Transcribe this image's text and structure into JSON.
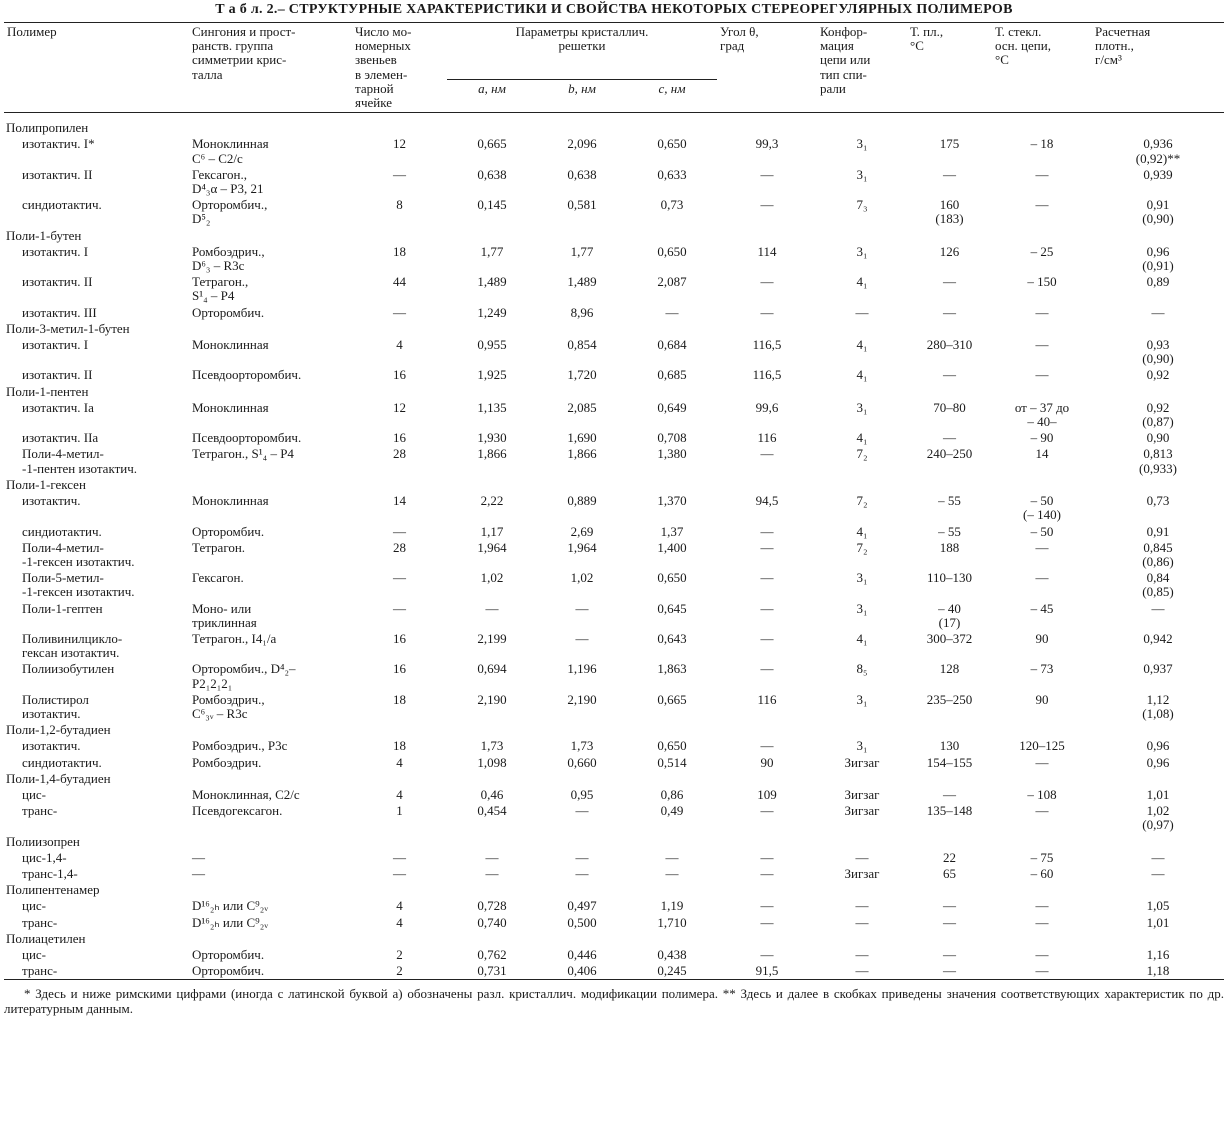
{
  "title": "Т а б л. 2.– СТРУКТУРНЫЕ ХАРАКТЕРИСТИКИ И СВОЙСТВА НЕКОТОРЫХ СТЕРЕОРЕГУЛЯРНЫХ ПОЛИМЕРОВ",
  "header": {
    "columns": [
      "Полимер",
      "Сингония и прост-\nранств. группа\nсимметрии крис-\nталла",
      "Число мо-\nномерных\nзвеньев\nв элемен-\nтарной\nячейке",
      "Угол θ,\nград",
      "Конфор-\nмация\nцепи или\nтип спи-\nрали",
      "Т. пл.,\n°С",
      "Т. стекл.\nосн. цепи,\n°С",
      "Расчетная\nплотн.,\nг/см³"
    ],
    "group": "Параметры кристаллич.\nрешетки",
    "subcolumns": [
      "a, нм",
      "b, нм",
      "c, нм"
    ]
  },
  "table": {
    "rows": [
      [
        "Полипропилен"
      ],
      [
        "изотактич. I*",
        "Моноклинная\nC⁶ – C2/c",
        "12",
        "0,665",
        "2,096",
        "0,650",
        "99,3",
        "3₁",
        "175",
        "– 18",
        "0,936\n(0,92)**"
      ],
      [
        "изотактич. II",
        "Гексагон.,\nD⁴₃α – P3, 21",
        "—",
        "0,638",
        "0,638",
        "0,633",
        "—",
        "3₁",
        "—",
        "—",
        "0,939"
      ],
      [
        "синдиотактич.",
        "Орторомбич.,\nD⁵₂",
        "8",
        "0,145",
        "0,581",
        "0,73",
        "—",
        "7₃",
        "160\n(183)",
        "—",
        "0,91\n(0,90)"
      ],
      [
        "Поли-1-бутен"
      ],
      [
        "изотактич. I",
        "Ромбоэдрич.,\nD⁶₃ – R3c",
        "18",
        "1,77",
        "1,77",
        "0,650",
        "114",
        "3₁",
        "126",
        "– 25",
        "0,96\n(0,91)"
      ],
      [
        "изотактич. II",
        "Тетрагон.,\nS¹₄ – P4",
        "44",
        "1,489",
        "1,489",
        "2,087",
        "—",
        "4₁",
        "—",
        "– 150",
        "0,89"
      ],
      [
        "изотактич. III",
        "Орторомбич.",
        "—",
        "1,249",
        "8,96",
        "—",
        "—",
        "—",
        "—",
        "—",
        "—"
      ],
      [
        "Поли-3-метил-1-бутен"
      ],
      [
        "изотактич. I",
        "Моноклинная",
        "4",
        "0,955",
        "0,854",
        "0,684",
        "116,5",
        "4₁",
        "280–310",
        "—",
        "0,93\n(0,90)"
      ],
      [
        "изотактич. II",
        "Псевдоорторомбич.",
        "16",
        "1,925",
        "1,720",
        "0,685",
        "116,5",
        "4₁",
        "—",
        "—",
        "0,92"
      ],
      [
        "Поли-1-пентен"
      ],
      [
        "изотактич. Ia",
        "Моноклинная",
        "12",
        "1,135",
        "2,085",
        "0,649",
        "99,6",
        "3₁",
        "70–80",
        "от – 37 до\n– 40–",
        "0,92\n(0,87)"
      ],
      [
        "изотактич. IIa",
        "Псевдоорторомбич.",
        "16",
        "1,930",
        "1,690",
        "0,708",
        "116",
        "4₁",
        "—",
        "– 90",
        "0,90"
      ],
      [
        "Поли-4-метил-\n-1-пентен изотактич.",
        "Тетрагон., S¹₄ – P4",
        "28",
        "1,866",
        "1,866",
        "1,380",
        "—",
        "7₂",
        "240–250",
        "14",
        "0,813\n(0,933)"
      ],
      [
        "Поли-1-гексен"
      ],
      [
        "изотактич.",
        "Моноклинная",
        "14",
        "2,22",
        "0,889",
        "1,370",
        "94,5",
        "7₂",
        "– 55",
        "– 50\n(– 140)",
        "0,73"
      ],
      [
        "синдиотактич.",
        "Орторомбич.",
        "—",
        "1,17",
        "2,69",
        "1,37",
        "—",
        "4₁",
        "– 55",
        "– 50",
        "0,91"
      ],
      [
        "Поли-4-метил-\n-1-гексен изотактич.",
        "Тетрагон.",
        "28",
        "1,964",
        "1,964",
        "1,400",
        "—",
        "7₂",
        "188",
        "—",
        "0,845\n(0,86)"
      ],
      [
        "Поли-5-метил-\n-1-гексен изотактич.",
        "Гексагон.",
        "—",
        "1,02",
        "1,02",
        "0,650",
        "—",
        "3₁",
        "110–130",
        "—",
        "0,84\n(0,85)"
      ],
      [
        "Поли-1-гептен",
        "Моно- или\nтриклинная",
        "—",
        "—",
        "—",
        "0,645",
        "—",
        "3₁",
        "– 40\n(17)",
        "– 45",
        "—"
      ],
      [
        "Поливинилцикло-\nгексан изотактич.",
        "Тетрагон., I4₁/a",
        "16",
        "2,199",
        "—",
        "0,643",
        "—",
        "4₁",
        "300–372",
        "90",
        "0,942"
      ],
      [
        "Полиизобутилен",
        "Орторомбич., D⁴₂–\nP2₁2₁2₁",
        "16",
        "0,694",
        "1,196",
        "1,863",
        "—",
        "8₅",
        "128",
        "– 73",
        "0,937"
      ],
      [
        "Полистирол\nизотактич.",
        "Ромбоэдрич.,\nC⁶₃ᵥ – R3c",
        "18",
        "2,190",
        "2,190",
        "0,665",
        "116",
        "3₁",
        "235–250",
        "90",
        "1,12\n(1,08)"
      ],
      [
        "Поли-1,2-бутадиен"
      ],
      [
        "изотактич.",
        "Ромбоэдрич., P3c",
        "18",
        "1,73",
        "1,73",
        "0,650",
        "—",
        "3₁",
        "130",
        "120–125",
        "0,96"
      ],
      [
        "синдиотактич.",
        "Ромбоэдрич.",
        "4",
        "1,098",
        "0,660",
        "0,514",
        "90",
        "Зигзаг",
        "154–155",
        "—",
        "0,96"
      ],
      [
        "Поли-1,4-бутадиен"
      ],
      [
        "цис-",
        "Моноклинная, C2/c",
        "4",
        "0,46",
        "0,95",
        "0,86",
        "109",
        "Зигзаг",
        "—",
        "– 108",
        "1,01"
      ],
      [
        "транс-",
        "Псевдогексагон.",
        "1",
        "0,454",
        "—",
        "0,49",
        "—",
        "Зигзаг",
        "135–148",
        "—",
        "1,02\n(0,97)"
      ],
      [
        "Полиизопрен"
      ],
      [
        "цис-1,4-",
        "—",
        "—",
        "—",
        "—",
        "—",
        "—",
        "—",
        "22",
        "– 75",
        "—"
      ],
      [
        "транс-1,4-",
        "—",
        "—",
        "—",
        "—",
        "—",
        "—",
        "Зигзаг",
        "65",
        "– 60",
        "—"
      ],
      [
        "Полипентенамер"
      ],
      [
        "цис-",
        "D¹⁶₂ₕ или C⁹₂ᵥ",
        "4",
        "0,728",
        "0,497",
        "1,19",
        "—",
        "—",
        "—",
        "—",
        "1,05"
      ],
      [
        "транс-",
        "D¹⁶₂ₕ или C⁹₂ᵥ",
        "4",
        "0,740",
        "0,500",
        "1,710",
        "—",
        "—",
        "—",
        "—",
        "1,01"
      ],
      [
        "Полиацетилен"
      ],
      [
        "цис-",
        "Орторомбич.",
        "2",
        "0,762",
        "0,446",
        "0,438",
        "—",
        "—",
        "—",
        "—",
        "1,16"
      ],
      [
        "транс-",
        "Орторомбич.",
        "2",
        "0,731",
        "0,406",
        "0,245",
        "91,5",
        "—",
        "—",
        "—",
        "1,18"
      ]
    ]
  },
  "footnote": "* Здесь и ниже римскими цифрами (иногда с латинской буквой a) обозначены разл. кристаллич. модификации полимера. ** Здесь и далее в скобках приведены значения соответствующих характеристик по др. литературным данным."
}
